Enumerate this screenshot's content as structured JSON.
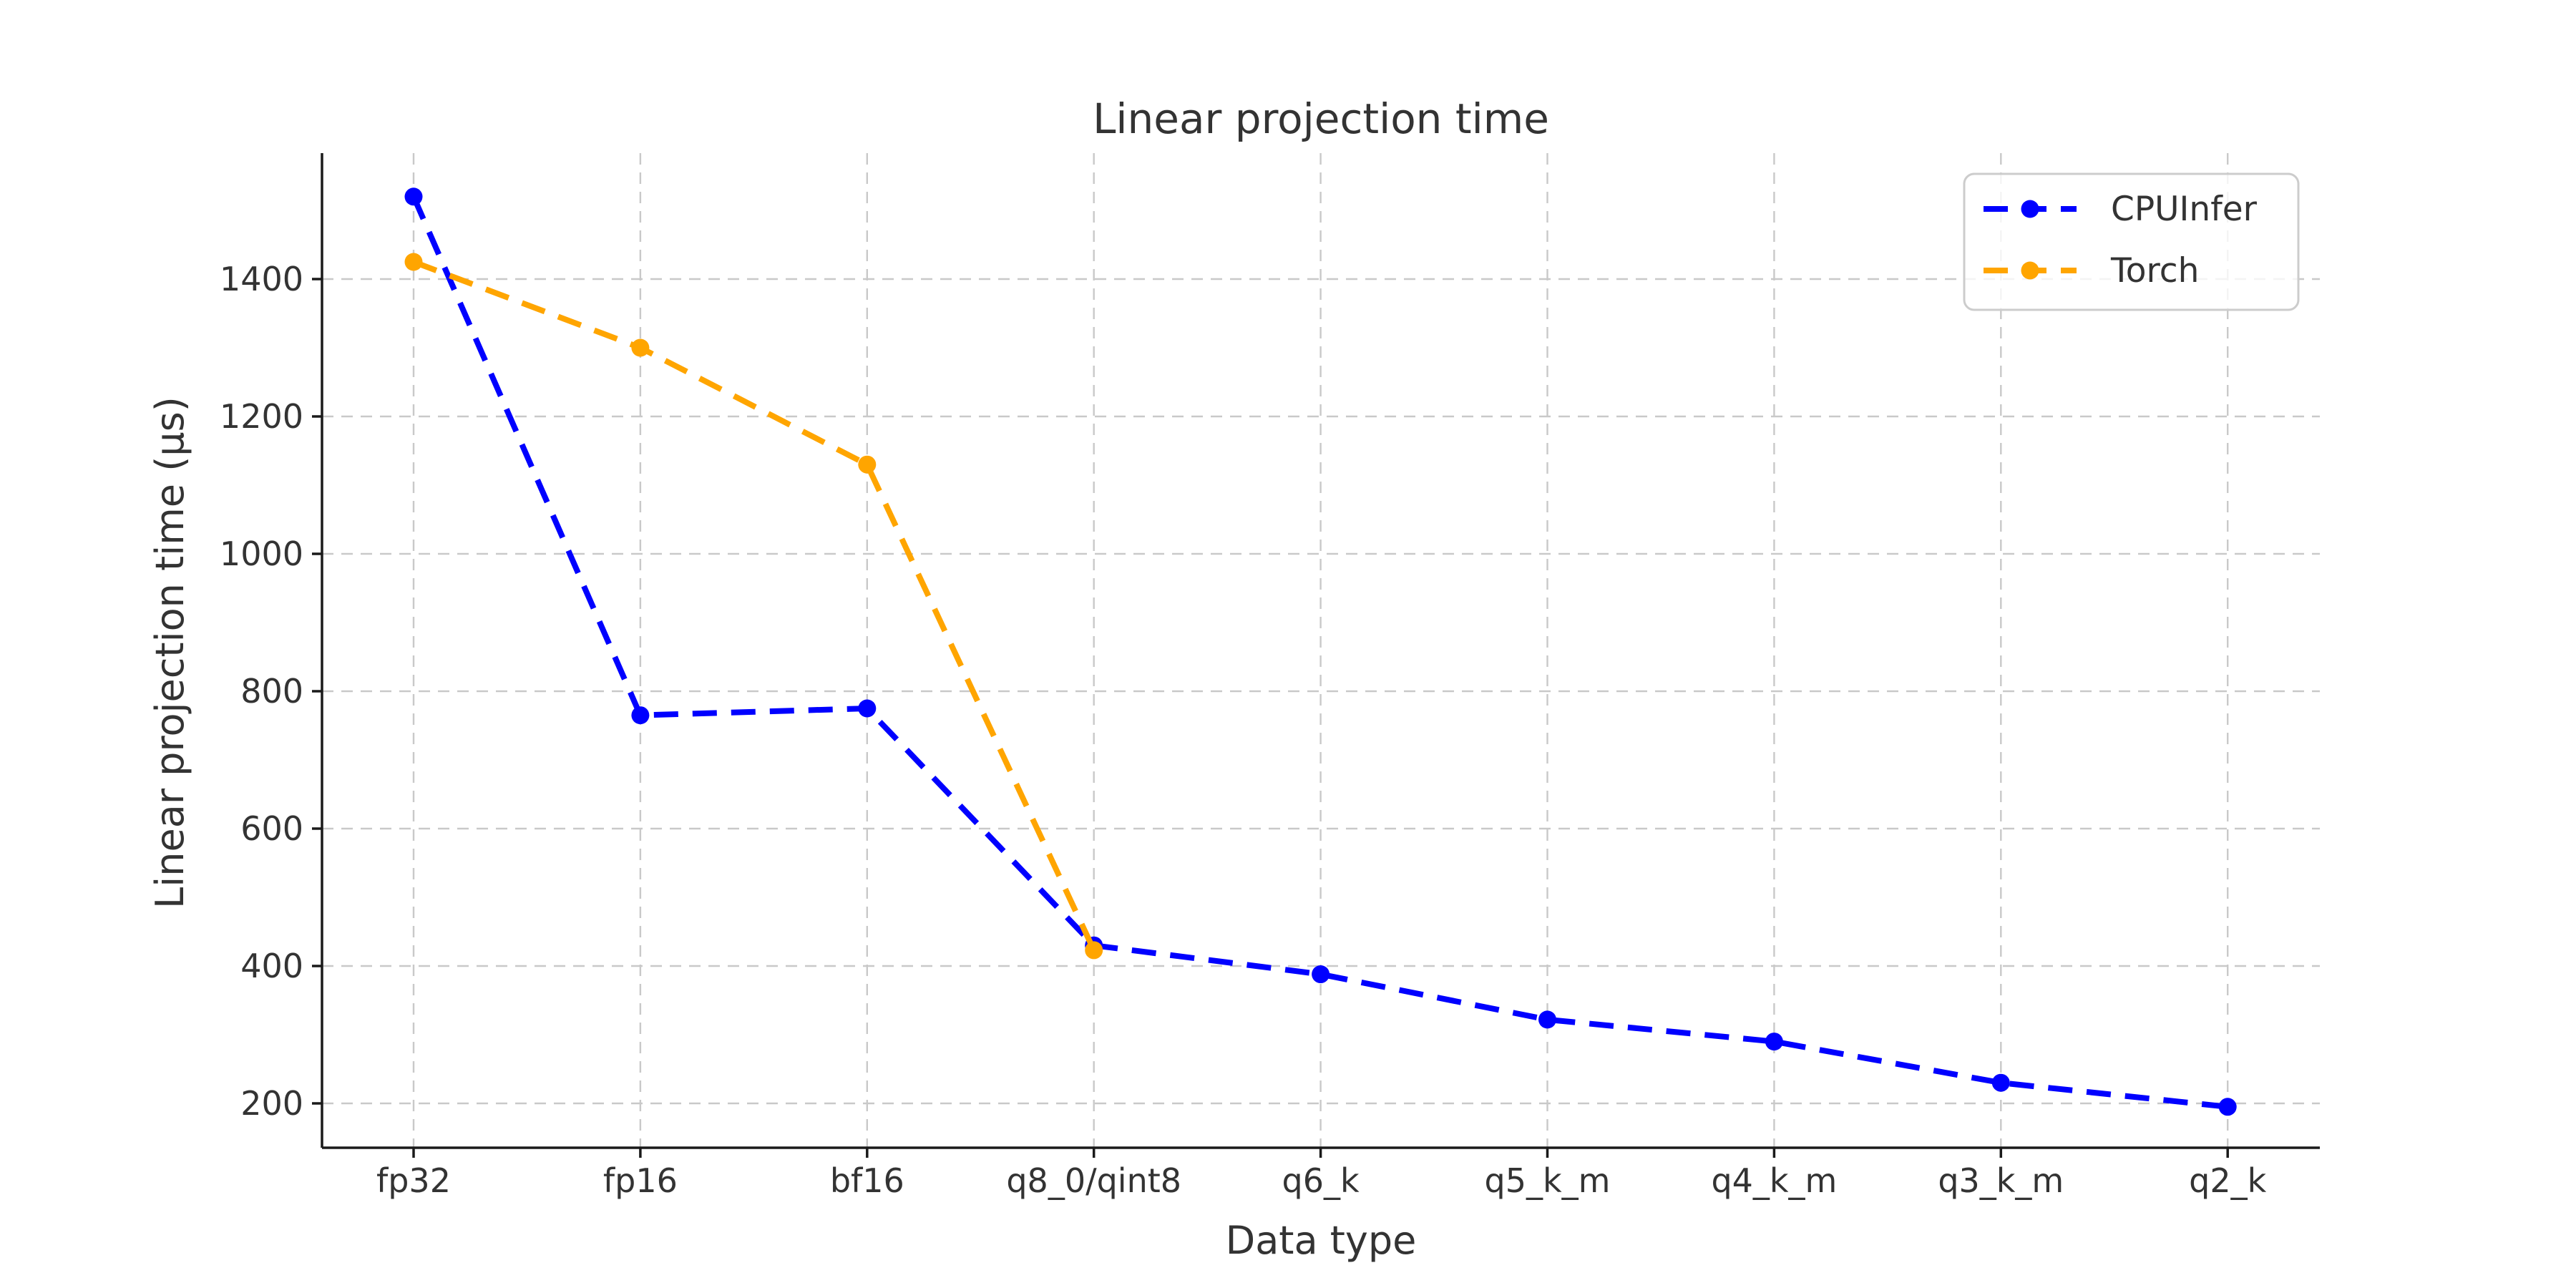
{
  "figure": {
    "background": "#ffffff"
  },
  "chart_data": {
    "type": "line",
    "title": "Linear projection time",
    "xlabel": "Data type",
    "ylabel": "Linear projection time (μs)",
    "categories": [
      "fp32",
      "fp16",
      "bf16",
      "q8_0/qint8",
      "q6_k",
      "q5_k_m",
      "q4_k_m",
      "q3_k_m",
      "q2_k"
    ],
    "series": [
      {
        "name": "CPUInfer",
        "color": "#0000ff",
        "linestyle": "dashed",
        "marker": "circle",
        "values": [
          1520,
          765,
          775,
          430,
          388,
          322,
          290,
          230,
          195
        ]
      },
      {
        "name": "Torch",
        "color": "#ffa500",
        "linestyle": "dashed",
        "marker": "circle",
        "values": [
          1425,
          1300,
          1130,
          423,
          null,
          null,
          null,
          null,
          null
        ]
      }
    ],
    "yticks": [
      200,
      400,
      600,
      800,
      1000,
      1200,
      1400
    ],
    "ylim": [
      125,
      1590
    ],
    "grid": true,
    "legend_position": "upper right",
    "legend_labels": [
      "CPUInfer",
      "Torch"
    ],
    "colors": {
      "grid": "#c9c9c9",
      "spine": "#1a1a1a",
      "text": "#333333",
      "legend_border": "#cccccc",
      "legend_fill": "#ffffff"
    }
  }
}
